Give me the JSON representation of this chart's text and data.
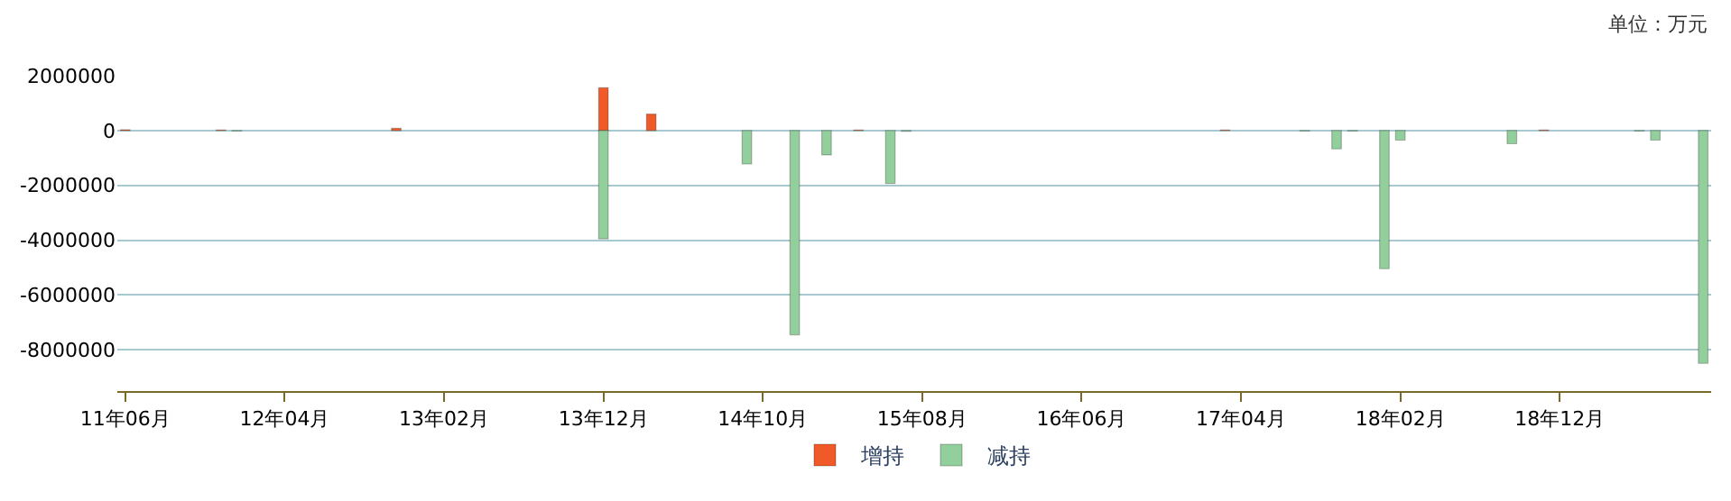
{
  "chart_data": {
    "type": "bar",
    "categories": [
      "11年06月",
      null,
      null,
      null,
      null,
      null,
      null,
      null,
      null,
      null,
      "12年04月",
      null,
      null,
      null,
      null,
      null,
      null,
      null,
      null,
      null,
      "13年02月",
      null,
      null,
      null,
      null,
      null,
      null,
      null,
      null,
      null,
      "13年12月",
      null,
      null,
      null,
      null,
      null,
      null,
      null,
      null,
      null,
      "14年10月",
      null,
      null,
      null,
      null,
      null,
      null,
      null,
      null,
      null,
      "15年08月",
      null,
      null,
      null,
      null,
      null,
      null,
      null,
      null,
      null,
      "16年06月",
      null,
      null,
      null,
      null,
      null,
      null,
      null,
      null,
      null,
      "17年04月",
      null,
      null,
      null,
      null,
      null,
      null,
      null,
      null,
      null,
      "18年02月",
      null,
      null,
      null,
      null,
      null,
      null,
      null,
      null,
      null,
      "18年12月",
      null,
      null,
      null,
      null,
      null,
      null,
      null,
      null,
      null
    ],
    "series": [
      {
        "name": "增持",
        "color": "#f05a28",
        "values": [
          30000,
          null,
          null,
          null,
          null,
          null,
          20000,
          null,
          null,
          null,
          null,
          null,
          null,
          null,
          null,
          null,
          null,
          80000,
          null,
          null,
          null,
          null,
          null,
          null,
          null,
          null,
          null,
          null,
          null,
          null,
          1560000,
          null,
          null,
          600000,
          null,
          null,
          null,
          null,
          null,
          null,
          null,
          null,
          null,
          null,
          null,
          null,
          20000,
          null,
          null,
          null,
          null,
          null,
          null,
          null,
          null,
          null,
          null,
          null,
          null,
          null,
          null,
          null,
          null,
          null,
          null,
          null,
          null,
          null,
          null,
          20000,
          null,
          null,
          null,
          null,
          null,
          null,
          null,
          null,
          null,
          null,
          null,
          null,
          null,
          null,
          null,
          null,
          null,
          null,
          null,
          20000,
          null,
          null,
          null,
          null,
          null,
          null,
          null,
          null,
          null,
          null
        ]
      },
      {
        "name": "减持",
        "color": "#93cf9c",
        "values": [
          null,
          null,
          null,
          null,
          null,
          null,
          null,
          -20000,
          null,
          null,
          null,
          null,
          null,
          null,
          null,
          null,
          null,
          null,
          null,
          null,
          null,
          null,
          null,
          null,
          null,
          null,
          null,
          null,
          null,
          null,
          -3950000,
          null,
          null,
          null,
          null,
          null,
          null,
          null,
          null,
          -1220000,
          null,
          null,
          -7450000,
          null,
          -890000,
          null,
          null,
          null,
          -1930000,
          -30000,
          null,
          null,
          null,
          null,
          null,
          null,
          null,
          null,
          null,
          null,
          null,
          null,
          null,
          null,
          null,
          null,
          null,
          null,
          null,
          null,
          null,
          null,
          null,
          null,
          -20000,
          null,
          -670000,
          -20000,
          null,
          -5040000,
          -350000,
          null,
          null,
          null,
          null,
          null,
          null,
          -480000,
          null,
          null,
          null,
          null,
          null,
          null,
          null,
          -20000,
          -350000,
          null,
          null,
          -8490000
        ]
      }
    ],
    "ylim": [
      -9500000,
      2000000
    ],
    "yticks": [
      2000000,
      0,
      -2000000,
      -4000000,
      -6000000,
      -8000000
    ],
    "grid": "y",
    "legend": "bottom",
    "annotations": [
      "单位：万元"
    ]
  }
}
